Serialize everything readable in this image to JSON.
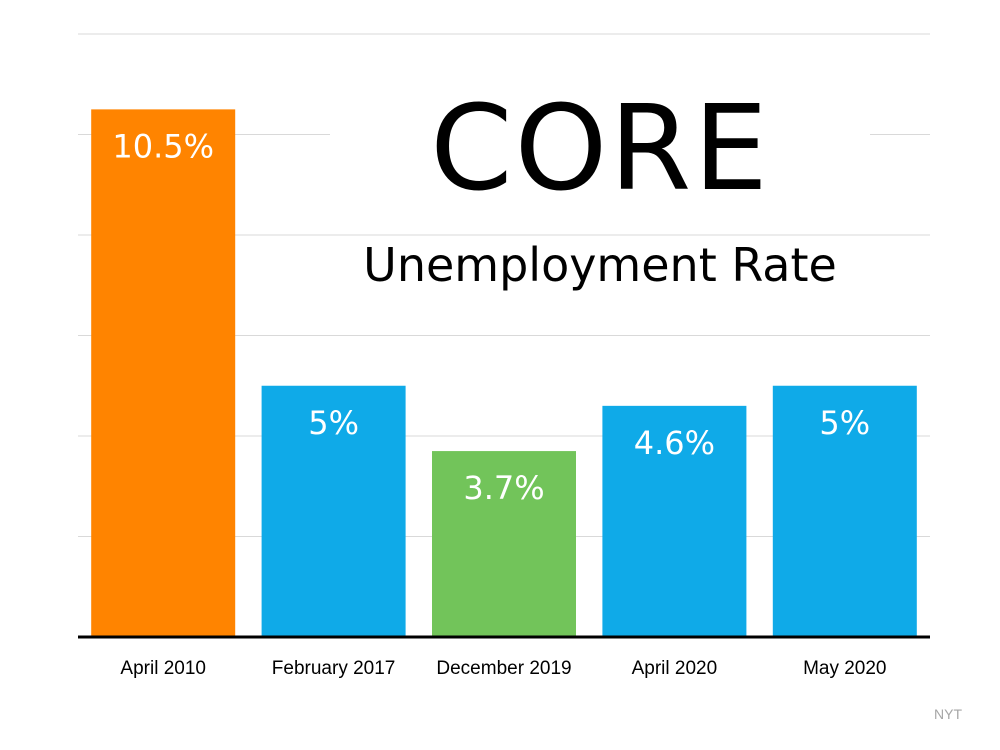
{
  "chart_data": {
    "type": "bar",
    "title": "CORE",
    "subtitle": "Unemployment Rate",
    "categories": [
      "April 2010",
      "February 2017",
      "December 2019",
      "April 2020",
      "May 2020"
    ],
    "values": [
      10.5,
      5,
      3.7,
      4.6,
      5
    ],
    "data_labels": [
      "10.5%",
      "5%",
      "3.7%",
      "4.6%",
      "5%"
    ],
    "colors": [
      "#FF8400",
      "#0FAAE8",
      "#72C45A",
      "#0FAAE8",
      "#0FAAE8"
    ],
    "ylim": [
      0,
      12
    ],
    "grid": true,
    "legend": "none",
    "source": "NYT"
  }
}
